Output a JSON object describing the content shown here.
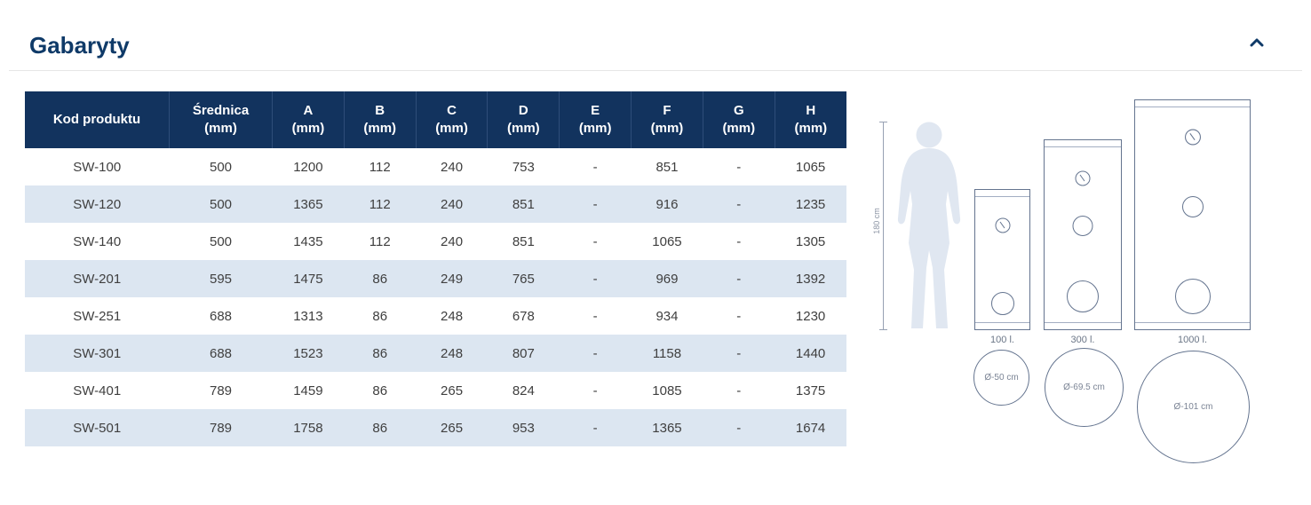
{
  "section": {
    "title": "Gabaryty"
  },
  "table": {
    "columns": [
      {
        "label": "Kod produktu",
        "unit": ""
      },
      {
        "label": "Średnica",
        "unit": "(mm)"
      },
      {
        "label": "A",
        "unit": "(mm)"
      },
      {
        "label": "B",
        "unit": "(mm)"
      },
      {
        "label": "C",
        "unit": "(mm)"
      },
      {
        "label": "D",
        "unit": "(mm)"
      },
      {
        "label": "E",
        "unit": "(mm)"
      },
      {
        "label": "F",
        "unit": "(mm)"
      },
      {
        "label": "G",
        "unit": "(mm)"
      },
      {
        "label": "H",
        "unit": "(mm)"
      }
    ],
    "rows": [
      [
        "SW-100",
        "500",
        "1200",
        "112",
        "240",
        "753",
        "-",
        "851",
        "-",
        "1065"
      ],
      [
        "SW-120",
        "500",
        "1365",
        "112",
        "240",
        "851",
        "-",
        "916",
        "-",
        "1235"
      ],
      [
        "SW-140",
        "500",
        "1435",
        "112",
        "240",
        "851",
        "-",
        "1065",
        "-",
        "1305"
      ],
      [
        "SW-201",
        "595",
        "1475",
        "86",
        "249",
        "765",
        "-",
        "969",
        "-",
        "1392"
      ],
      [
        "SW-251",
        "688",
        "1313",
        "86",
        "248",
        "678",
        "-",
        "934",
        "-",
        "1230"
      ],
      [
        "SW-301",
        "688",
        "1523",
        "86",
        "248",
        "807",
        "-",
        "1158",
        "-",
        "1440"
      ],
      [
        "SW-401",
        "789",
        "1459",
        "86",
        "265",
        "824",
        "-",
        "1085",
        "-",
        "1375"
      ],
      [
        "SW-501",
        "789",
        "1758",
        "86",
        "265",
        "953",
        "-",
        "1365",
        "-",
        "1674"
      ]
    ]
  },
  "diagram": {
    "ruler_label": "180 cm",
    "tanks": [
      {
        "capacity_label": "100 l.",
        "diameter_label": "Ø-50 cm"
      },
      {
        "capacity_label": "300 l.",
        "diameter_label": "Ø-69.5 cm"
      },
      {
        "capacity_label": "1000 l.",
        "diameter_label": "Ø-101 cm"
      }
    ]
  },
  "colors": {
    "header_bg": "#12335e",
    "stripe_bg": "#dce6f1",
    "title": "#0f3a68",
    "diagram_stroke": "#64748f",
    "silhouette_fill": "#e0e7f1"
  }
}
